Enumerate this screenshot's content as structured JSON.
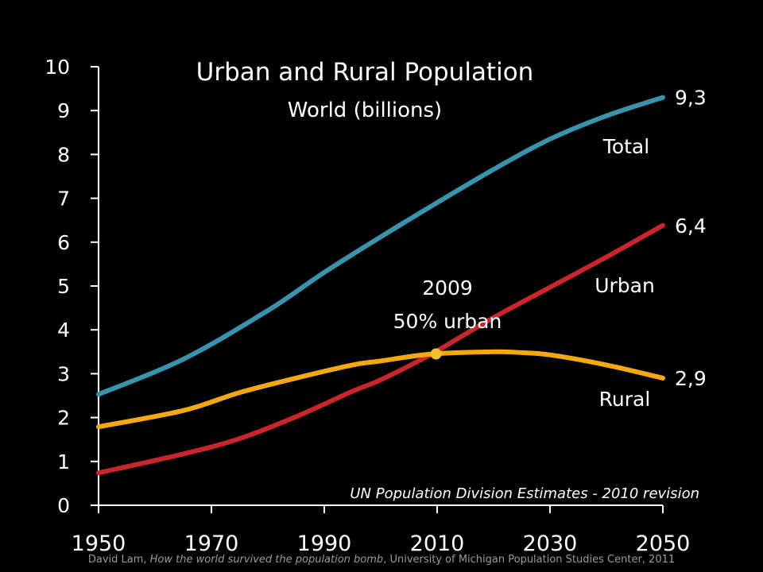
{
  "chart_data": {
    "type": "line",
    "title": "Urban and Rural Population",
    "subtitle": "World (billions)",
    "x_ticks": [
      1950,
      1970,
      1990,
      2010,
      2030,
      2050
    ],
    "y_ticks": [
      0,
      1,
      2,
      3,
      4,
      5,
      6,
      7,
      8,
      9,
      10
    ],
    "xlim": [
      1950,
      2050
    ],
    "ylim": [
      0,
      10
    ],
    "grid": false,
    "series": [
      {
        "name": "Total",
        "color": "#3a93ad",
        "end_label": "9,3",
        "points": [
          [
            1950,
            2.53
          ],
          [
            1965,
            3.33
          ],
          [
            1980,
            4.44
          ],
          [
            1990,
            5.31
          ],
          [
            2000,
            6.12
          ],
          [
            2010,
            6.9
          ],
          [
            2020,
            7.66
          ],
          [
            2030,
            8.35
          ],
          [
            2040,
            8.88
          ],
          [
            2050,
            9.3
          ]
        ]
      },
      {
        "name": "Urban",
        "color": "#c8262c",
        "end_label": "6,4",
        "points": [
          [
            1950,
            0.74
          ],
          [
            1965,
            1.17
          ],
          [
            1975,
            1.52
          ],
          [
            1985,
            2.02
          ],
          [
            1995,
            2.6
          ],
          [
            2000,
            2.86
          ],
          [
            2009,
            3.45
          ],
          [
            2020,
            4.28
          ],
          [
            2030,
            4.97
          ],
          [
            2040,
            5.66
          ],
          [
            2050,
            6.38
          ]
        ]
      },
      {
        "name": "Rural",
        "color": "#f5a810",
        "end_label": "2,9",
        "points": [
          [
            1950,
            1.79
          ],
          [
            1965,
            2.16
          ],
          [
            1975,
            2.57
          ],
          [
            1985,
            2.9
          ],
          [
            1995,
            3.2
          ],
          [
            2000,
            3.29
          ],
          [
            2009,
            3.45
          ],
          [
            2020,
            3.5
          ],
          [
            2025,
            3.48
          ],
          [
            2030,
            3.43
          ],
          [
            2040,
            3.2
          ],
          [
            2050,
            2.9
          ]
        ]
      }
    ],
    "annotation": {
      "year_label": "2009",
      "text": "50% urban",
      "x": 2009.8,
      "y": 3.45,
      "marker_color": "#f5c030"
    },
    "source_note": "UN Population Division Estimates - 2010 revision"
  },
  "footer": {
    "author": "David Lam, ",
    "work": "How the world survived the population bomb",
    "institution": ", University of Michigan Population Studies Center, 2011"
  }
}
